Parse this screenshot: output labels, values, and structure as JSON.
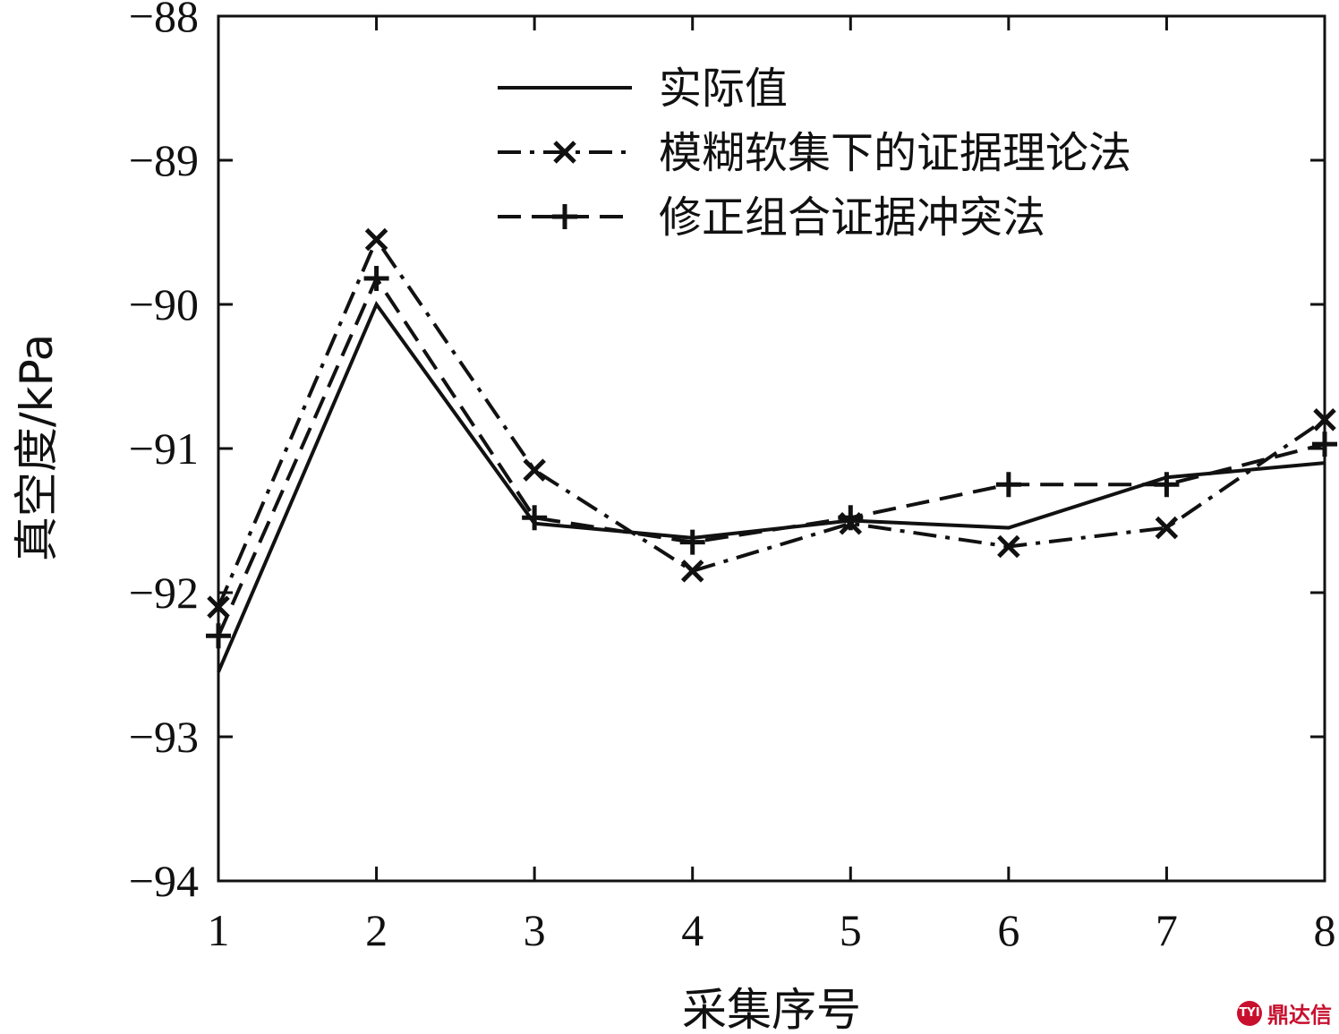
{
  "chart_data": {
    "type": "line",
    "title": "",
    "xlabel": "采集序号",
    "ylabel": "真空度/kPa",
    "x": [
      1,
      2,
      3,
      4,
      5,
      6,
      7,
      8
    ],
    "xlim": [
      1,
      8
    ],
    "ylim": [
      -94,
      -88
    ],
    "xticks": [
      "1",
      "2",
      "3",
      "4",
      "5",
      "6",
      "7",
      "8"
    ],
    "yticks": [
      "−94",
      "−93",
      "−92",
      "−91",
      "−90",
      "−89",
      "−88"
    ],
    "grid": false,
    "legend_position": "top-right",
    "series": [
      {
        "name": "实际值",
        "style": "solid",
        "marker": "none",
        "color": "#111111",
        "values": [
          -92.55,
          -90.0,
          -91.52,
          -91.62,
          -91.5,
          -91.55,
          -91.2,
          -91.1
        ]
      },
      {
        "name": "模糊软集下的证据理论法",
        "style": "dash-dot",
        "marker": "x",
        "color": "#111111",
        "values": [
          -92.1,
          -89.55,
          -91.15,
          -91.85,
          -91.52,
          -91.68,
          -91.55,
          -90.8
        ]
      },
      {
        "name": "修正组合证据冲突法",
        "style": "dashed",
        "marker": "plus",
        "color": "#111111",
        "values": [
          -92.3,
          -89.82,
          -91.48,
          -91.65,
          -91.48,
          -91.25,
          -91.25,
          -90.97
        ]
      }
    ]
  },
  "watermark": {
    "logo_text": "TYI",
    "text": "鼎达信"
  }
}
